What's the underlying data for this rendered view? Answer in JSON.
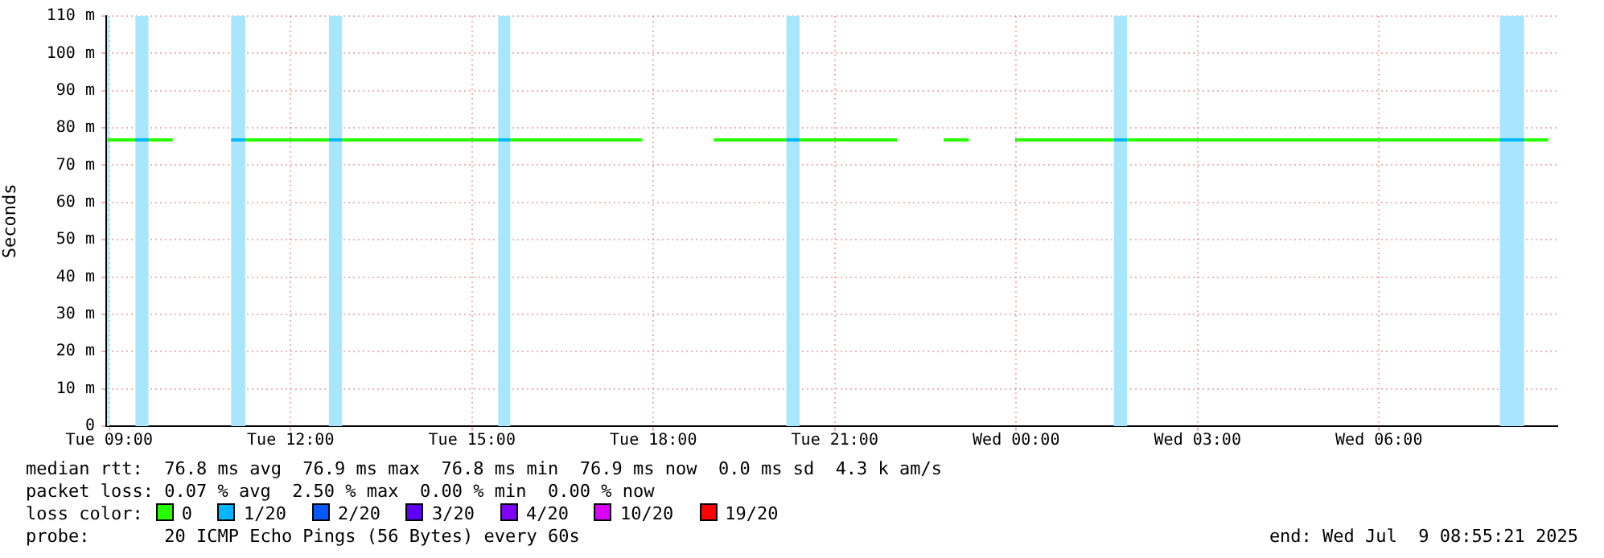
{
  "chart_data": {
    "type": "line",
    "ylabel": "Seconds",
    "legend_title": "loss color:",
    "legend": "bottom",
    "grid": true,
    "xlim": [
      "2025-07-08T08:57",
      "2025-07-09T08:57"
    ],
    "xticks": [
      {
        "value": "2025-07-08T09:00",
        "label": "Tue 09:00"
      },
      {
        "value": "2025-07-08T12:00",
        "label": "Tue 12:00"
      },
      {
        "value": "2025-07-08T15:00",
        "label": "Tue 15:00"
      },
      {
        "value": "2025-07-08T18:00",
        "label": "Tue 18:00"
      },
      {
        "value": "2025-07-08T21:00",
        "label": "Tue 21:00"
      },
      {
        "value": "2025-07-09T00:00",
        "label": "Wed 00:00"
      },
      {
        "value": "2025-07-09T03:00",
        "label": "Wed 03:00"
      },
      {
        "value": "2025-07-09T06:00",
        "label": "Wed 06:00"
      }
    ],
    "ylim": [
      0,
      110
    ],
    "yticks": [
      0,
      {
        "value": 10,
        "label": "10 m"
      },
      {
        "value": 20,
        "label": "20 m"
      },
      {
        "value": 30,
        "label": "30 m"
      },
      {
        "value": 40,
        "label": "40 m"
      },
      {
        "value": 50,
        "label": "50 m"
      },
      {
        "value": 60,
        "label": "60 m"
      },
      {
        "value": 70,
        "label": "70 m"
      },
      {
        "value": 80,
        "label": "80 m"
      },
      {
        "value": 90,
        "label": "90 m"
      },
      {
        "value": 100,
        "label": "100 m"
      },
      {
        "value": 110,
        "label": "110 m"
      }
    ],
    "series": [
      {
        "name": "0",
        "color": "#26ff00",
        "x": [
          "2025-07-08T08:58",
          "2025-07-08T10:03",
          "2025-07-08T10:30",
          "2025-07-08T11:15",
          "2025-07-08T17:49",
          "2025-07-08T18:30",
          "2025-07-08T19:00",
          "2025-07-08T22:02",
          "2025-07-08T22:30",
          "2025-07-08T22:48",
          "2025-07-08T23:13",
          "2025-07-08T23:40",
          "2025-07-08T23:59",
          "2025-07-09T08:48"
        ],
        "values": [
          76.8,
          76.8,
          null,
          76.8,
          76.8,
          null,
          76.8,
          76.8,
          null,
          76.8,
          76.8,
          null,
          76.8,
          76.8
        ]
      },
      {
        "name": "1/20",
        "color": "#00b8ff",
        "x": [
          "2025-07-08T09:26",
          "2025-07-08T09:39",
          "2025-07-08T09:45",
          "2025-07-08T11:01",
          "2025-07-08T11:15",
          "2025-07-08T11:30",
          "2025-07-08T12:38",
          "2025-07-08T12:51",
          "2025-07-08T13:00",
          "2025-07-08T15:26",
          "2025-07-08T15:38",
          "2025-07-08T16:00",
          "2025-07-08T20:12",
          "2025-07-08T20:25",
          "2025-07-08T20:40",
          "2025-07-09T01:37",
          "2025-07-09T01:50",
          "2025-07-09T02:00",
          "2025-07-09T08:00",
          "2025-07-09T08:24"
        ],
        "values": [
          76.8,
          76.8,
          null,
          76.8,
          76.8,
          null,
          76.8,
          76.8,
          null,
          76.8,
          76.8,
          null,
          76.8,
          76.8,
          null,
          76.8,
          76.8,
          null,
          76.8,
          76.8
        ]
      },
      {
        "name": "2/20",
        "color": "#0059ff"
      },
      {
        "name": "3/20",
        "color": "#5e00ff"
      },
      {
        "name": "4/20",
        "color": "#7e00ff"
      },
      {
        "name": "10/20",
        "color": "#dd00ff"
      },
      {
        "name": "19/20",
        "color": "#ff0000"
      }
    ],
    "bands": [
      {
        "axis": "x",
        "from": "2025-07-08T08:58",
        "to": "2025-07-08T09:00",
        "color": "#a8e6fd"
      },
      {
        "axis": "x",
        "from": "2025-07-08T09:26",
        "to": "2025-07-08T09:39",
        "color": "#a8e6fd"
      },
      {
        "axis": "x",
        "from": "2025-07-08T11:01",
        "to": "2025-07-08T11:15",
        "color": "#a8e6fd"
      },
      {
        "axis": "x",
        "from": "2025-07-08T12:38",
        "to": "2025-07-08T12:51",
        "color": "#a8e6fd"
      },
      {
        "axis": "x",
        "from": "2025-07-08T15:26",
        "to": "2025-07-08T15:38",
        "color": "#a8e6fd"
      },
      {
        "axis": "x",
        "from": "2025-07-08T20:12",
        "to": "2025-07-08T20:25",
        "color": "#a8e6fd"
      },
      {
        "axis": "x",
        "from": "2025-07-09T01:37",
        "to": "2025-07-09T01:50",
        "color": "#a8e6fd"
      },
      {
        "axis": "x",
        "from": "2025-07-09T08:00",
        "to": "2025-07-09T08:24",
        "color": "#a8e6fd"
      }
    ],
    "annotations": [
      "median rtt:  76.8 ms avg  76.9 ms max  76.8 ms min  76.9 ms now  0.0 ms sd  4.3 k am/s",
      "packet loss: 0.07 % avg  2.50 % max  0.00 % min  0.00 % now",
      "probe:       20 ICMP Echo Pings (56 Bytes) every 60s",
      "end: Wed Jul  9 08:55:21 2025"
    ]
  }
}
